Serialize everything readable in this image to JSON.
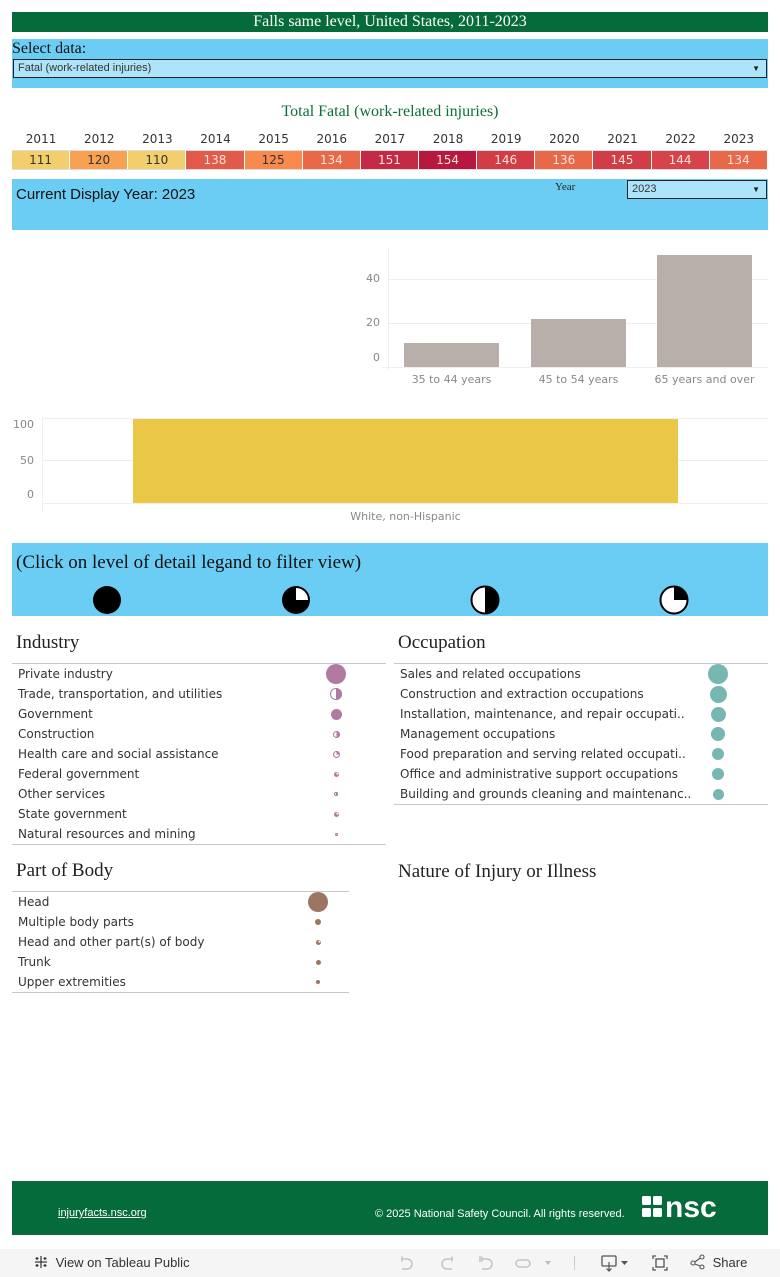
{
  "header": {
    "title": "Falls same level, United States, 2011-2023"
  },
  "select_data": {
    "label": "Select data:",
    "value": "Fatal (work-related injuries)"
  },
  "totals": {
    "title": "Total Fatal (work-related injuries)",
    "years": [
      "2011",
      "2012",
      "2013",
      "2014",
      "2015",
      "2016",
      "2017",
      "2018",
      "2019",
      "2020",
      "2021",
      "2022",
      "2023"
    ],
    "values": [
      "111",
      "120",
      "110",
      "138",
      "125",
      "134",
      "151",
      "154",
      "146",
      "136",
      "145",
      "144",
      "134"
    ],
    "colors": [
      "#f2cf6a",
      "#f8a150",
      "#f2cf6a",
      "#e25b4a",
      "#f78a4c",
      "#e8684a",
      "#c42a43",
      "#b8173e",
      "#d13c47",
      "#e8684a",
      "#d13c47",
      "#d6434a",
      "#e8684a"
    ],
    "text_colors": [
      "#333",
      "#333",
      "#333",
      "#fbe3e0",
      "#333",
      "#fbe3e0",
      "#fbe3e0",
      "#fbe3e0",
      "#fbe3e0",
      "#fbe3e0",
      "#fbe3e0",
      "#fbe3e0",
      "#fbe3e0"
    ]
  },
  "year_panel": {
    "current_display": "Current Display Year: 2023",
    "year_label": "Year",
    "year_value": "2023"
  },
  "chart_data": [
    {
      "type": "bar",
      "title": "",
      "xlabel": "",
      "ylabel": "",
      "categories": [
        "35 to 44 years",
        "45 to 54 years",
        "65 years and over"
      ],
      "values": [
        11,
        22,
        51
      ],
      "yticks": [
        "0",
        "20",
        "40"
      ],
      "ylim": [
        0,
        55
      ],
      "color": "#b9afaa",
      "grid": true
    },
    {
      "type": "bar",
      "title": "",
      "xlabel": "",
      "ylabel": "",
      "categories": [
        "White, non-Hispanic"
      ],
      "values": [
        100
      ],
      "yticks": [
        "0",
        "50",
        "100"
      ],
      "ylim": [
        0,
        100
      ],
      "color": "#eac746",
      "grid": true
    }
  ],
  "lod_legend": {
    "instruction": "(Click on level of detail legand to filter view)",
    "icons": [
      "full-circle-icon",
      "three-quarter-circle-icon",
      "half-circle-icon",
      "quarter-circle-icon"
    ]
  },
  "industry": {
    "title": "Industry",
    "color": "#b07aa1",
    "items": [
      {
        "label": "Private industry",
        "size": 20,
        "lod": "full"
      },
      {
        "label": "Trade, transportation, and utilities",
        "size": 12,
        "lod": "half"
      },
      {
        "label": "Government",
        "size": 11,
        "lod": "full"
      },
      {
        "label": "Construction",
        "size": 7,
        "lod": "half"
      },
      {
        "label": "Health care and social assistance",
        "size": 7,
        "lod": "quarter"
      },
      {
        "label": "Federal government",
        "size": 5,
        "lod": "three-quarter"
      },
      {
        "label": "Other services",
        "size": 4,
        "lod": "half"
      },
      {
        "label": "State government",
        "size": 5,
        "lod": "three-quarter"
      },
      {
        "label": "Natural resources and mining",
        "size": 3,
        "lod": "half"
      }
    ]
  },
  "occupation": {
    "title": "Occupation",
    "color": "#76b7b2",
    "items": [
      {
        "label": "Sales and related occupations",
        "size": 20
      },
      {
        "label": "Construction and extraction occupations",
        "size": 17
      },
      {
        "label": "Installation, maintenance, and repair occupati..",
        "size": 15
      },
      {
        "label": "Management occupations",
        "size": 14
      },
      {
        "label": "Food preparation and serving related occupati..",
        "size": 12
      },
      {
        "label": "Office and administrative support occupations",
        "size": 12
      },
      {
        "label": "Building and grounds cleaning and maintenanc..",
        "size": 11
      }
    ]
  },
  "part_of_body": {
    "title": "Part of Body",
    "color": "#9c7563",
    "items": [
      {
        "label": "Head",
        "size": 20,
        "lod": "full"
      },
      {
        "label": "Multiple body parts",
        "size": 6,
        "lod": "full"
      },
      {
        "label": "Head and other part(s) of body",
        "size": 5,
        "lod": "three-quarter"
      },
      {
        "label": "Trunk",
        "size": 5,
        "lod": "full"
      },
      {
        "label": "Upper extremities",
        "size": 4,
        "lod": "full"
      }
    ]
  },
  "nature": {
    "title": "Nature of Injury or Illness"
  },
  "footer": {
    "link": "injuryfacts.nsc.org",
    "copyright": "© 2025 National Safety Council. All rights reserved.",
    "logo_text": "nsc"
  },
  "toolbar": {
    "view_on_tableau": "View on Tableau Public",
    "share": "Share"
  }
}
